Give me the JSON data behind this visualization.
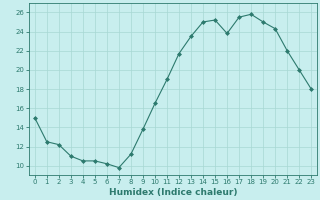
{
  "title": "",
  "xlabel": "Humidex (Indice chaleur)",
  "ylabel": "",
  "x": [
    0,
    1,
    2,
    3,
    4,
    5,
    6,
    7,
    8,
    9,
    10,
    11,
    12,
    13,
    14,
    15,
    16,
    17,
    18,
    19,
    20,
    21,
    22,
    23
  ],
  "y": [
    15.0,
    12.5,
    12.2,
    11.0,
    10.5,
    10.5,
    10.2,
    9.8,
    11.2,
    13.8,
    16.5,
    19.0,
    21.7,
    23.5,
    25.0,
    25.2,
    23.8,
    25.5,
    25.8,
    25.0,
    24.3,
    22.0,
    20.0,
    18.0
  ],
  "line_color": "#2d7a6e",
  "marker": "D",
  "marker_size": 2,
  "bg_color": "#c8eeee",
  "grid_color": "#a8d8d4",
  "axis_color": "#2d7a6e",
  "tick_color": "#2d7a6e",
  "label_color": "#2d7a6e",
  "xlim": [
    -0.5,
    23.5
  ],
  "ylim": [
    9,
    27
  ],
  "yticks": [
    10,
    12,
    14,
    16,
    18,
    20,
    22,
    24,
    26
  ],
  "xticks": [
    0,
    1,
    2,
    3,
    4,
    5,
    6,
    7,
    8,
    9,
    10,
    11,
    12,
    13,
    14,
    15,
    16,
    17,
    18,
    19,
    20,
    21,
    22,
    23
  ],
  "tick_fontsize": 5,
  "xlabel_fontsize": 6.5,
  "linewidth": 0.8
}
